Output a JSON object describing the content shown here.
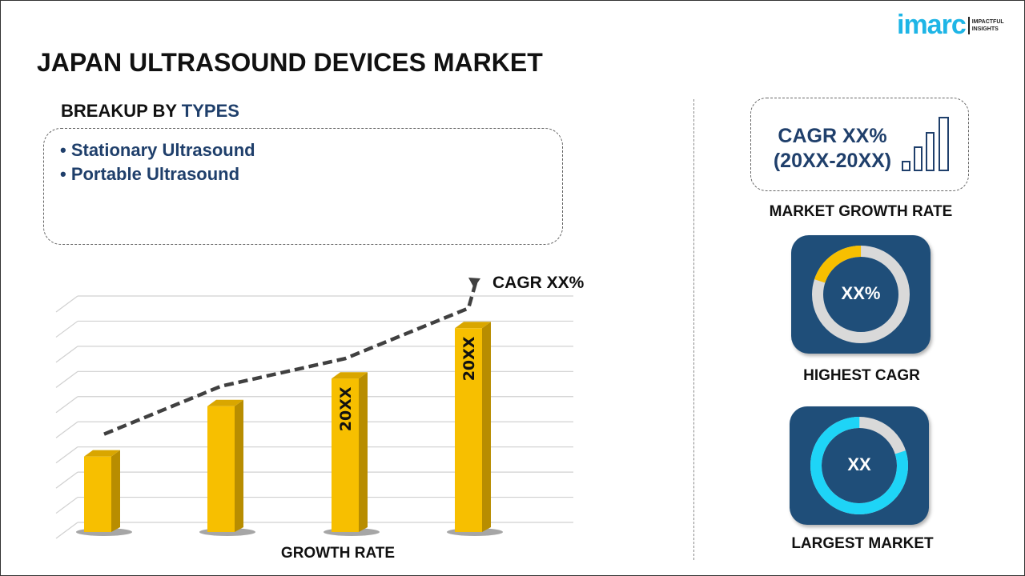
{
  "logo": {
    "word": "imarc",
    "tagline_1": "IMPACTFUL",
    "tagline_2": "INSIGHTS"
  },
  "title": "JAPAN ULTRASOUND DEVICES MARKET",
  "breakup": {
    "prefix": "BREAKUP BY ",
    "highlight": "TYPES",
    "items": [
      "• Stationary  Ultrasound",
      "• Portable  Ultrasound"
    ]
  },
  "right": {
    "cagr_line1": "CAGR XX%",
    "cagr_line2": "(20XX-20XX)",
    "growth_label": "MARKET  GROWTH RATE",
    "highest_value": "XX%",
    "highest_label": "HIGHEST CAGR",
    "largest_value": "XX",
    "largest_label": "LARGEST MARKET"
  },
  "colors": {
    "accent": "#1f4e79",
    "bar": "#f7bf00",
    "bar_side": "#b88d00",
    "donut_yellow": "#f7bf00",
    "donut_cyan": "#1ed4f7",
    "donut_gray": "#d9d9d9"
  },
  "donuts": {
    "highest_fraction": 0.2,
    "largest_fraction": 0.8
  },
  "chart_data": {
    "type": "bar",
    "categories": [
      "",
      "",
      "",
      ""
    ],
    "values": [
      3,
      5,
      6.1,
      8.1
    ],
    "bar_labels": [
      "",
      "",
      "20XX",
      "20XX"
    ],
    "trend_label": "CAGR XX%",
    "xlabel": "GROWTH RATE",
    "ylabel": "",
    "ylim": [
      0,
      9
    ],
    "grid": true
  }
}
